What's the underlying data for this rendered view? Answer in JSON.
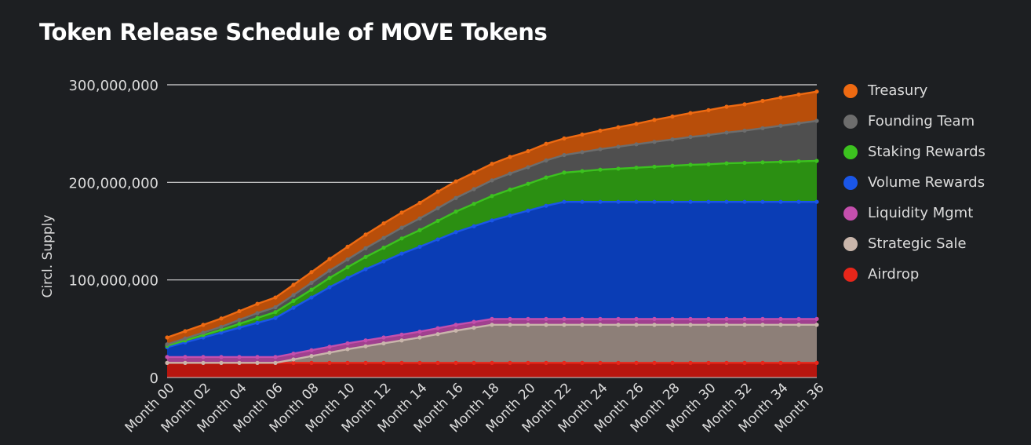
{
  "chart_data": {
    "type": "area",
    "stacked": true,
    "title": "Token Release Schedule of MOVE Tokens",
    "xlabel": "",
    "ylabel": "Circl. Supply",
    "ylim": [
      0,
      300000000
    ],
    "yticks": [
      0,
      100000000,
      200000000,
      300000000
    ],
    "ytick_labels": [
      "0",
      "100,000,000",
      "200,000,000",
      "300,000,000"
    ],
    "grid": true,
    "legend_position": "right",
    "x": [
      "Month 00",
      "Month 01",
      "Month 02",
      "Month 03",
      "Month 04",
      "Month 05",
      "Month 06",
      "Month 07",
      "Month 08",
      "Month 09",
      "Month 10",
      "Month 11",
      "Month 12",
      "Month 13",
      "Month 14",
      "Month 15",
      "Month 16",
      "Month 17",
      "Month 18",
      "Month 19",
      "Month 20",
      "Month 21",
      "Month 22",
      "Month 23",
      "Month 24",
      "Month 25",
      "Month 26",
      "Month 27",
      "Month 28",
      "Month 29",
      "Month 30",
      "Month 31",
      "Month 32",
      "Month 33",
      "Month 34",
      "Month 35",
      "Month 36"
    ],
    "x_tick_labels": [
      "Month 00",
      "Month 02",
      "Month 04",
      "Month 06",
      "Month 08",
      "Month 10",
      "Month 12",
      "Month 14",
      "Month 16",
      "Month 18",
      "Month 20",
      "Month 22",
      "Month 24",
      "Month 26",
      "Month 28",
      "Month 30",
      "Month 32",
      "Month 34",
      "Month 36"
    ],
    "series": [
      {
        "name": "Airdrop",
        "color": "#e8261a",
        "fill": "#b8160f",
        "values": [
          15000000,
          15000000,
          15000000,
          15000000,
          15000000,
          15000000,
          15000000,
          15000000,
          15000000,
          15000000,
          15000000,
          15000000,
          15000000,
          15000000,
          15000000,
          15000000,
          15000000,
          15000000,
          15000000,
          15000000,
          15000000,
          15000000,
          15000000,
          15000000,
          15000000,
          15000000,
          15000000,
          15000000,
          15000000,
          15000000,
          15000000,
          15000000,
          15000000,
          15000000,
          15000000,
          15000000,
          15000000
        ]
      },
      {
        "name": "Strategic Sale",
        "color": "#c9b6ab",
        "fill": "#8d7f78",
        "values": [
          0,
          0,
          0,
          0,
          0,
          0,
          0,
          3500000,
          7000000,
          10500000,
          14000000,
          17000000,
          20000000,
          23000000,
          26000000,
          29500000,
          33000000,
          36000000,
          39000000,
          39000000,
          39000000,
          39000000,
          39000000,
          39000000,
          39000000,
          39000000,
          39000000,
          39000000,
          39000000,
          39000000,
          39000000,
          39000000,
          39000000,
          39000000,
          39000000,
          39000000,
          39000000
        ]
      },
      {
        "name": "Liquidity Mgmt",
        "color": "#c44fad",
        "fill": "#a0408f",
        "values": [
          6000000,
          6000000,
          6000000,
          6000000,
          6000000,
          6000000,
          6000000,
          6000000,
          6000000,
          6000000,
          6000000,
          6000000,
          6000000,
          6000000,
          6000000,
          6000000,
          6000000,
          6000000,
          6000000,
          6000000,
          6000000,
          6000000,
          6000000,
          6000000,
          6000000,
          6000000,
          6000000,
          6000000,
          6000000,
          6000000,
          6000000,
          6000000,
          6000000,
          6000000,
          6000000,
          6000000,
          6000000
        ]
      },
      {
        "name": "Volume Rewards",
        "color": "#1a56e8",
        "fill": "#0a3db5",
        "values": [
          10000000,
          15000000,
          20000000,
          25000000,
          30000000,
          35000000,
          40000000,
          47000000,
          54000000,
          61000000,
          67000000,
          73000000,
          78000000,
          83000000,
          87000000,
          91000000,
          95000000,
          98000000,
          101000000,
          106000000,
          111000000,
          116000000,
          120000000,
          120000000,
          120000000,
          120000000,
          120000000,
          120000000,
          120000000,
          120000000,
          120000000,
          120000000,
          120000000,
          120000000,
          120000000,
          120000000,
          120000000
        ]
      },
      {
        "name": "Staking Rewards",
        "color": "#3cc21f",
        "fill": "#2b8f12",
        "values": [
          1500000,
          2000000,
          2500000,
          3000000,
          4000000,
          5000000,
          6000000,
          7000000,
          8000000,
          9500000,
          11000000,
          12500000,
          14000000,
          15500000,
          17000000,
          19000000,
          21000000,
          23000000,
          25000000,
          26500000,
          27500000,
          29000000,
          30000000,
          31500000,
          33000000,
          34000000,
          35000000,
          36000000,
          37000000,
          38000000,
          38500000,
          39500000,
          40000000,
          40500000,
          41000000,
          41500000,
          42000000
        ]
      },
      {
        "name": "Founding Team",
        "color": "#6d6d6d",
        "fill": "#4f4f4f",
        "values": [
          1500000,
          2000000,
          2500000,
          3000000,
          4000000,
          5000000,
          5000000,
          6000000,
          7000000,
          7500000,
          8000000,
          9000000,
          10000000,
          11000000,
          12000000,
          13000000,
          14000000,
          15000000,
          16000000,
          16500000,
          17000000,
          17500000,
          18000000,
          19500000,
          21000000,
          22500000,
          24000000,
          25500000,
          27000000,
          28500000,
          30000000,
          31500000,
          33000000,
          35000000,
          37000000,
          39000000,
          41000000
        ]
      },
      {
        "name": "Treasury",
        "color": "#ee6a12",
        "fill": "#b84e0a",
        "values": [
          7000000,
          7500000,
          8000000,
          8500000,
          9000000,
          9500000,
          10000000,
          10500000,
          11000000,
          12000000,
          13000000,
          14000000,
          15000000,
          15500000,
          16000000,
          17000000,
          17000000,
          17000000,
          17000000,
          17000000,
          16500000,
          17000000,
          17000000,
          18000000,
          19000000,
          20000000,
          21000000,
          22500000,
          23500000,
          24500000,
          25500000,
          26500000,
          27000000,
          28000000,
          29000000,
          29500000,
          30000000
        ]
      }
    ],
    "legend_order": [
      "Treasury",
      "Founding Team",
      "Staking Rewards",
      "Volume Rewards",
      "Liquidity Mgmt",
      "Strategic Sale",
      "Airdrop"
    ]
  }
}
